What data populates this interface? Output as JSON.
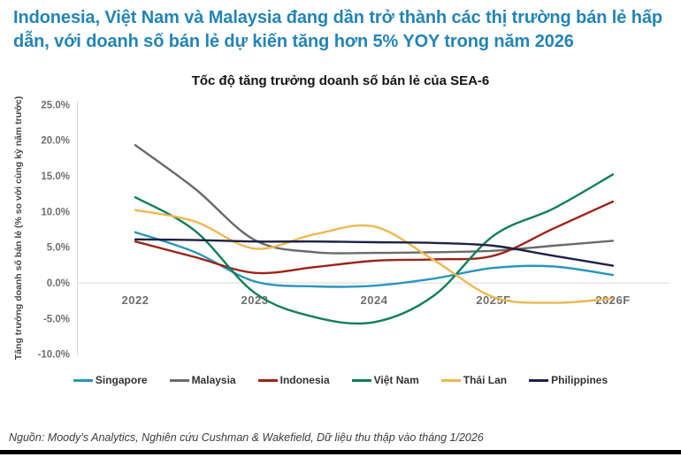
{
  "header": {
    "title": "Indonesia, Việt Nam và Malaysia đang dần trở thành các thị trường bán lẻ hấp dẫn, với doanh số bán lẻ dự kiến tăng hơn 5% YOY trong năm 2026"
  },
  "chart_data": {
    "type": "line",
    "title": "Tốc độ tăng trưởng doanh số bán lẻ của SEA-6",
    "ylabel": "Tăng trưởng doanh số bán lẻ (% so với cùng kỳ năm trước)",
    "xlabel": "",
    "ylim": [
      -10,
      25
    ],
    "y_ticks": [
      25,
      20,
      15,
      10,
      5,
      0,
      -5,
      -10
    ],
    "y_tick_suffix": "%",
    "grid": "zero-baseline-only",
    "legend_position": "bottom",
    "x_ticks": [
      {
        "x": 2022,
        "label": "2022"
      },
      {
        "x": 2023,
        "label": "2023"
      },
      {
        "x": 2024,
        "label": "2024"
      },
      {
        "x": 2025,
        "label": "2025F"
      },
      {
        "x": 2026,
        "label": "2026F"
      }
    ],
    "x": [
      2022,
      2022.5,
      2023,
      2023.5,
      2024,
      2024.5,
      2025,
      2025.5,
      2026
    ],
    "series": [
      {
        "name": "Singapore",
        "color": "#2796BE",
        "values": [
          7.1,
          4.3,
          0.2,
          -0.5,
          -0.4,
          0.6,
          2.1,
          2.3,
          1.1
        ]
      },
      {
        "name": "Malaysia",
        "color": "#6A6A6D",
        "values": [
          19.3,
          13.2,
          6.0,
          4.3,
          4.2,
          4.3,
          4.5,
          5.2,
          5.9
        ]
      },
      {
        "name": "Indonesia",
        "color": "#9E2318",
        "values": [
          5.8,
          3.6,
          1.4,
          2.2,
          3.1,
          3.3,
          3.8,
          7.6,
          11.4
        ]
      },
      {
        "name": "Việt Nam",
        "color": "#0E7F5B",
        "values": [
          12.0,
          7.3,
          -1.4,
          -4.8,
          -5.5,
          -1.8,
          6.6,
          10.4,
          15.2
        ]
      },
      {
        "name": "Thái Lan",
        "color": "#EEB84E",
        "values": [
          10.2,
          8.6,
          4.8,
          6.8,
          7.9,
          3.2,
          -2.0,
          -2.8,
          -2.2
        ]
      },
      {
        "name": "Philippines",
        "color": "#1D2147",
        "values": [
          6.1,
          6.0,
          5.8,
          5.8,
          5.7,
          5.6,
          5.2,
          3.8,
          2.4
        ]
      }
    ]
  },
  "footer": {
    "source": "Nguồn: Moody’s Analytics, Nghiên cứu Cushman & Wakefield, Dữ liệu thu thập vào tháng 1/2026"
  },
  "colors": {
    "title_accent": "#2384b8",
    "axis_line": "#d9d9d9",
    "tick_text": "#6f6f6f",
    "bottom_bar": "#000000"
  }
}
